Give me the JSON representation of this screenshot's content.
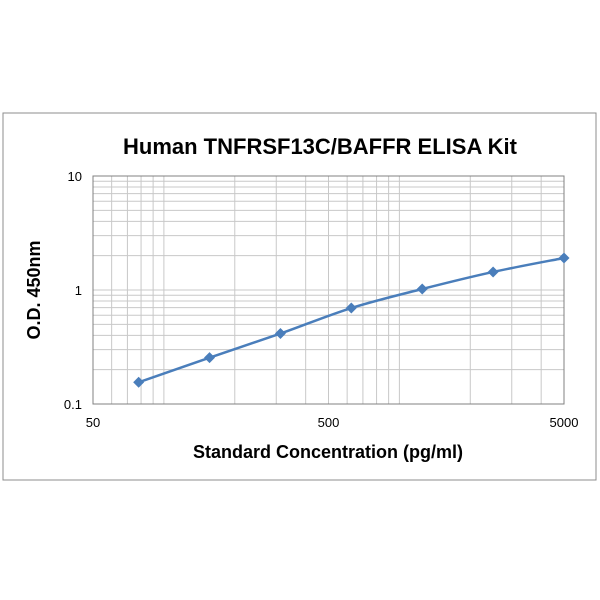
{
  "chart_data": {
    "type": "line",
    "title": "Human TNFRSF13C/BAFFR ELISA Kit",
    "xlabel": "Standard Concentration (pg/ml)",
    "ylabel": "O.D.  450nm",
    "x_scale": "log",
    "y_scale": "log",
    "xlim": [
      50,
      5000
    ],
    "ylim": [
      0.1,
      10
    ],
    "x_ticks": [
      "50",
      "500",
      "5000"
    ],
    "y_ticks": [
      "0.1",
      "1",
      "10"
    ],
    "grid": true,
    "legend": "none",
    "line_color": "#4a7ebb",
    "marker": "diamond",
    "series": [
      {
        "x": [
          78.125,
          156.25,
          312.5,
          625,
          1250,
          2500,
          5000
        ],
        "y": [
          0.155,
          0.255,
          0.415,
          0.695,
          1.02,
          1.44,
          1.91
        ]
      }
    ]
  }
}
